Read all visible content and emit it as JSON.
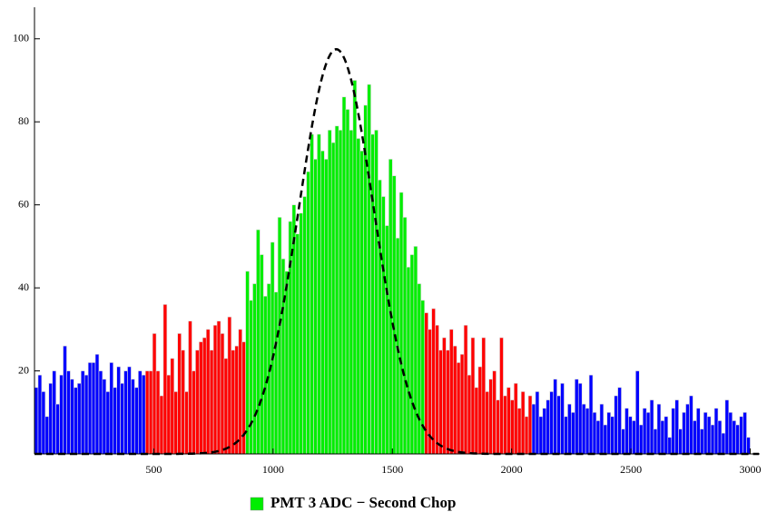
{
  "chart_data": {
    "type": "histogram",
    "xlim": [
      0,
      3040
    ],
    "ylim": [
      0,
      107.6
    ],
    "xticks": [
      500,
      1000,
      1500,
      2000,
      2500,
      3000
    ],
    "yticks": [
      20,
      40,
      60,
      80,
      100
    ],
    "legend": "bottom",
    "series": [
      {
        "color": "#0000ff",
        "bins": [
          0,
          15,
          30,
          45,
          60,
          75,
          90,
          105,
          120,
          135,
          150,
          165,
          180,
          195,
          210,
          225,
          240,
          255,
          270,
          285,
          300,
          315,
          330,
          345,
          360,
          375,
          390,
          405,
          420,
          435,
          450,
          465
        ],
        "values": [
          16,
          19,
          15,
          9,
          17,
          20,
          12,
          19,
          26,
          20,
          18,
          16,
          17,
          20,
          19,
          22,
          22,
          24,
          20,
          18,
          15,
          22,
          16,
          21,
          17,
          20,
          21,
          18,
          16,
          20,
          19
        ]
      },
      {
        "color": "#ff0000",
        "bins": [
          465,
          480,
          495,
          510,
          525,
          540,
          555,
          570,
          585,
          600,
          615,
          630,
          645,
          660,
          675,
          690,
          705,
          720,
          735,
          750,
          765,
          780,
          795,
          810,
          825,
          840,
          855,
          870,
          885
        ],
        "values": [
          20,
          20,
          29,
          20,
          14,
          36,
          19,
          23,
          15,
          29,
          25,
          15,
          32,
          20,
          25,
          27,
          28,
          30,
          25,
          31,
          32,
          29,
          23,
          33,
          25,
          26,
          30,
          27
        ]
      },
      {
        "name": "PMT 3 ADC − Second Chop",
        "color": "#00ee00",
        "bins": [
          885,
          900,
          915,
          930,
          945,
          960,
          975,
          990,
          1005,
          1020,
          1035,
          1050,
          1065,
          1080,
          1095,
          1110,
          1125,
          1140,
          1155,
          1170,
          1185,
          1200,
          1215,
          1230,
          1245,
          1260,
          1275,
          1290,
          1305,
          1320,
          1335,
          1350,
          1365,
          1380,
          1395,
          1410,
          1425,
          1440,
          1455,
          1470,
          1485,
          1500,
          1515,
          1530,
          1545,
          1560,
          1575,
          1590,
          1605,
          1620,
          1635
        ],
        "values": [
          44,
          37,
          41,
          54,
          48,
          38,
          41,
          51,
          39,
          57,
          47,
          44,
          56,
          60,
          53,
          58,
          62,
          68,
          77,
          71,
          77,
          73,
          71,
          78,
          75,
          79,
          78,
          86,
          83,
          78,
          90,
          76,
          73,
          84,
          89,
          77,
          78,
          66,
          62,
          55,
          71,
          67,
          52,
          63,
          57,
          45,
          48,
          50,
          41,
          37
        ]
      },
      {
        "color": "#ff0000",
        "bins": [
          1635,
          1650,
          1665,
          1680,
          1695,
          1710,
          1725,
          1740,
          1755,
          1770,
          1785,
          1800,
          1815,
          1830,
          1845,
          1860,
          1875,
          1890,
          1905,
          1920,
          1935,
          1950,
          1965,
          1980,
          1995,
          2010,
          2025,
          2040,
          2055,
          2070,
          2085
        ],
        "values": [
          34,
          30,
          35,
          31,
          25,
          28,
          25,
          30,
          26,
          22,
          24,
          31,
          19,
          28,
          16,
          21,
          28,
          15,
          18,
          20,
          13,
          28,
          14,
          16,
          13,
          17,
          11,
          15,
          9,
          14
        ]
      },
      {
        "color": "#0000ff",
        "bins": [
          2085,
          2100,
          2115,
          2130,
          2145,
          2160,
          2175,
          2190,
          2205,
          2220,
          2235,
          2250,
          2265,
          2280,
          2295,
          2310,
          2325,
          2340,
          2355,
          2370,
          2385,
          2400,
          2415,
          2430,
          2445,
          2460,
          2475,
          2490,
          2505,
          2520,
          2535,
          2550,
          2565,
          2580,
          2595,
          2610,
          2625,
          2640,
          2655,
          2670,
          2685,
          2700,
          2715,
          2730,
          2745,
          2760,
          2775,
          2790,
          2805,
          2820,
          2835,
          2850,
          2865,
          2880,
          2895,
          2910,
          2925,
          2940,
          2955,
          2970,
          2985,
          3000
        ],
        "values": [
          12,
          15,
          9,
          11,
          13,
          15,
          18,
          14,
          17,
          9,
          12,
          10,
          18,
          17,
          12,
          11,
          19,
          10,
          8,
          12,
          7,
          10,
          9,
          14,
          16,
          6,
          11,
          9,
          8,
          20,
          7,
          11,
          10,
          13,
          6,
          12,
          8,
          9,
          4,
          11,
          13,
          6,
          10,
          12,
          14,
          8,
          11,
          6,
          10,
          9,
          7,
          11,
          8,
          5,
          13,
          10,
          8,
          7,
          9,
          10,
          4
        ]
      }
    ],
    "fit": {
      "type": "gaussian",
      "color": "#000000",
      "amplitude": 97.5,
      "mean": 1265,
      "sigma": 157
    }
  }
}
